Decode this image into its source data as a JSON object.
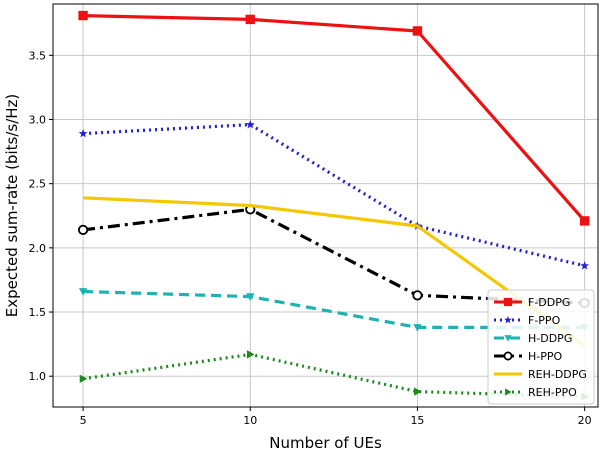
{
  "chart_data": {
    "type": "line",
    "title": "",
    "xlabel": "Number of UEs",
    "ylabel": "Expected sum-rate (bits/s/Hz)",
    "x": [
      5,
      10,
      15,
      20
    ],
    "x_ticks": [
      "5",
      "10",
      "15",
      "20"
    ],
    "y_ticks": [
      "1.0",
      "1.5",
      "2.0",
      "2.5",
      "3.0",
      "3.5"
    ],
    "xlim": [
      4.1,
      20.4
    ],
    "ylim": [
      0.76,
      3.9
    ],
    "grid": true,
    "legend_position": "lower-right",
    "series": [
      {
        "name": "F-DDPG",
        "values": [
          3.81,
          3.78,
          3.69,
          2.21
        ],
        "color": "#ee1111",
        "dash": "solid",
        "marker": "square"
      },
      {
        "name": "F-PPO",
        "values": [
          2.89,
          2.96,
          2.17,
          1.86
        ],
        "color": "#1f1fd6",
        "dash": "dotted",
        "marker": "star"
      },
      {
        "name": "H-DDPG",
        "values": [
          1.66,
          1.62,
          1.38,
          1.38
        ],
        "color": "#20b2b2",
        "dash": "dashed",
        "marker": "triangle-down"
      },
      {
        "name": "H-PPO",
        "values": [
          2.14,
          2.3,
          1.63,
          1.57
        ],
        "color": "#000000",
        "dash": "dashdot",
        "marker": "circle"
      },
      {
        "name": "REH-DDPG",
        "values": [
          2.39,
          2.33,
          2.17,
          1.24
        ],
        "color": "#f4c700",
        "dash": "solid",
        "marker": "none"
      },
      {
        "name": "REH-PPO",
        "values": [
          0.98,
          1.17,
          0.88,
          0.84
        ],
        "color": "#1e8a1e",
        "dash": "dotted",
        "marker": "triangle-right"
      }
    ]
  }
}
